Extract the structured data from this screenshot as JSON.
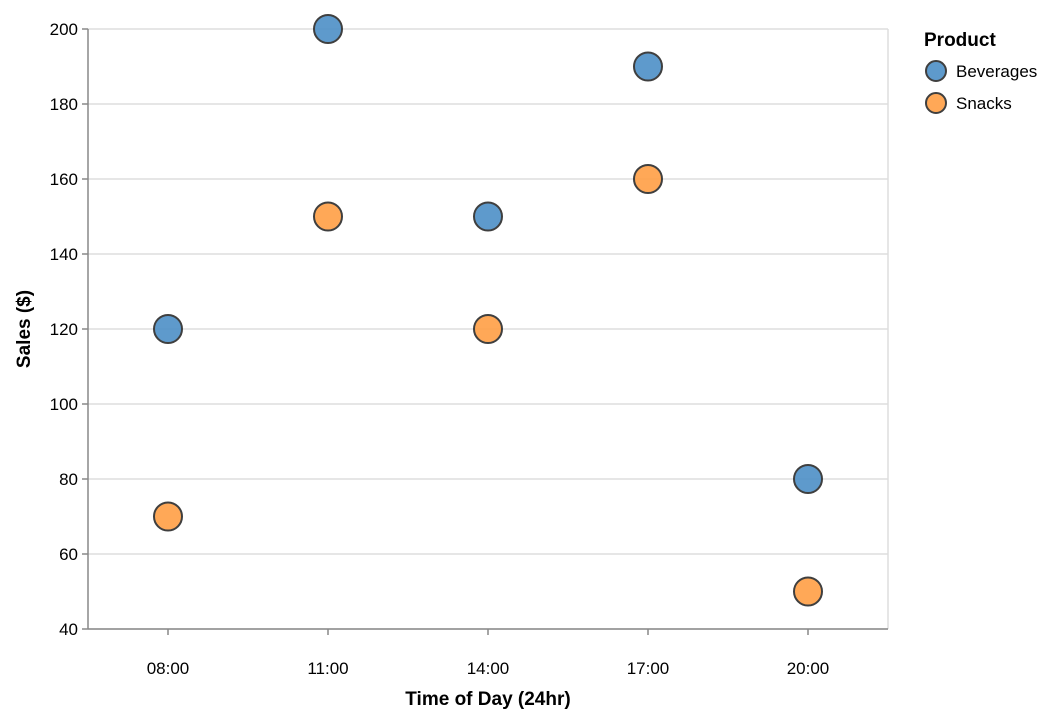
{
  "chart_data": {
    "type": "scatter",
    "title": "",
    "xlabel": "Time of Day (24hr)",
    "ylabel": "Sales ($)",
    "categories": [
      "08:00",
      "11:00",
      "14:00",
      "17:00",
      "20:00"
    ],
    "ylim": [
      40,
      200
    ],
    "yticks": [
      40,
      60,
      80,
      100,
      120,
      140,
      160,
      180,
      200
    ],
    "grid": true,
    "legend": {
      "title": "Product",
      "placement": "top-right"
    },
    "series": [
      {
        "name": "Beverages",
        "color": "#4c8fc6",
        "values": [
          120,
          200,
          150,
          190,
          80
        ]
      },
      {
        "name": "Snacks",
        "color": "#ff9f45",
        "values": [
          70,
          150,
          120,
          160,
          50
        ]
      }
    ]
  }
}
